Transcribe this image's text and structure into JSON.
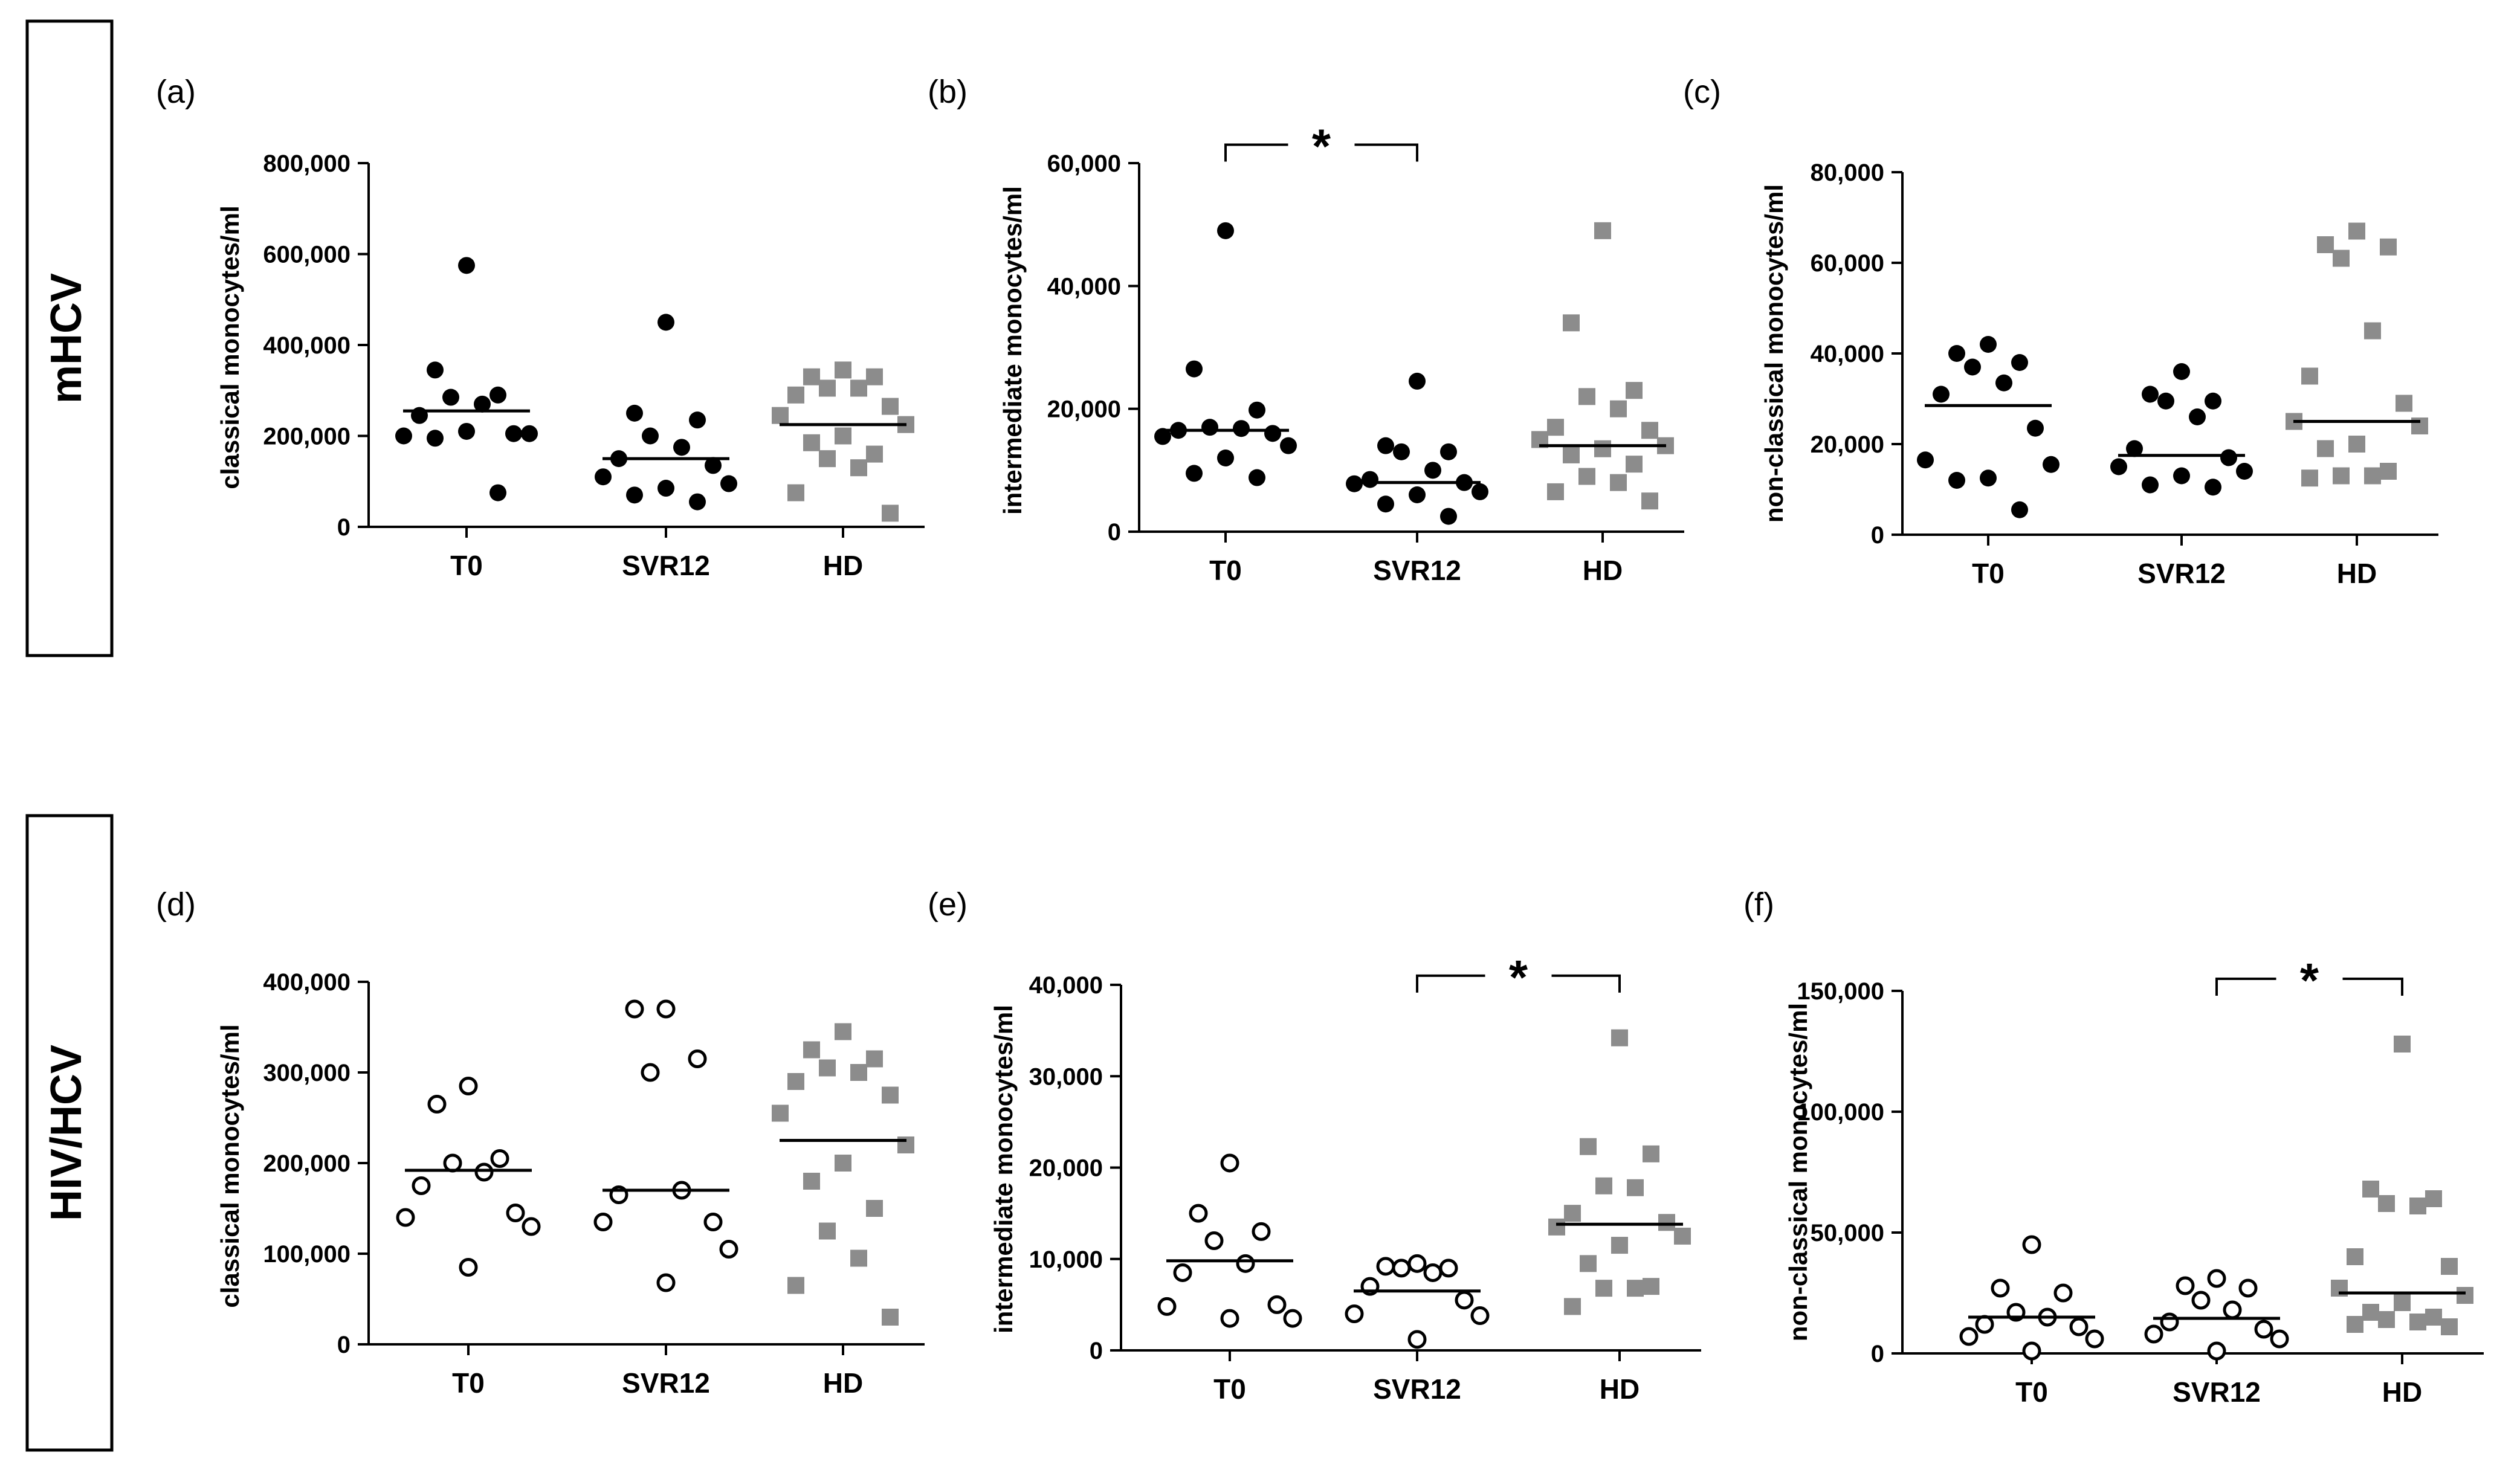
{
  "rows": [
    {
      "label": "mHCV"
    },
    {
      "label": "HIV/HCV"
    }
  ],
  "colors": {
    "patient_filled": "#000000",
    "patient_open_stroke": "#000000",
    "healthy_donor": "#8c8c8c",
    "axis": "#000000"
  },
  "chart_data": [
    {
      "panel": "(a)",
      "type": "scatter",
      "row": "mHCV",
      "ylabel": "classical monocytes/ml",
      "ylim": [
        0,
        800000
      ],
      "yticks": [
        0,
        200000,
        400000,
        600000,
        800000
      ],
      "ytick_labels": [
        "0",
        "200,000",
        "400,000",
        "600,000",
        "800,000"
      ],
      "categories": [
        "T0",
        "SVR12",
        "HD"
      ],
      "series": [
        {
          "name": "T0",
          "marker": "filled-circle",
          "median": 255000,
          "values": [
            575000,
            345000,
            290000,
            285000,
            270000,
            245000,
            205000,
            200000,
            205000,
            210000,
            195000,
            75000
          ]
        },
        {
          "name": "SVR12",
          "marker": "filled-circle",
          "median": 150000,
          "values": [
            450000,
            250000,
            235000,
            200000,
            175000,
            150000,
            135000,
            110000,
            95000,
            85000,
            70000,
            55000
          ]
        },
        {
          "name": "HD",
          "marker": "grey-square",
          "median": 225000,
          "values": [
            345000,
            330000,
            330000,
            305000,
            305000,
            290000,
            265000,
            245000,
            225000,
            200000,
            185000,
            160000,
            150000,
            130000,
            75000,
            30000
          ]
        }
      ],
      "significance": []
    },
    {
      "panel": "(b)",
      "type": "scatter",
      "row": "mHCV",
      "ylabel": "intermediate monocytes/ml",
      "ylim": [
        0,
        60000
      ],
      "yticks": [
        0,
        20000,
        40000,
        60000
      ],
      "ytick_labels": [
        "0",
        "20,000",
        "40,000",
        "60,000"
      ],
      "categories": [
        "T0",
        "SVR12",
        "HD"
      ],
      "series": [
        {
          "name": "T0",
          "marker": "filled-circle",
          "median": 16500,
          "values": [
            49000,
            26500,
            19800,
            17000,
            16800,
            16500,
            16000,
            15500,
            14000,
            12000,
            9500,
            8800
          ]
        },
        {
          "name": "SVR12",
          "marker": "filled-circle",
          "median": 8000,
          "values": [
            24500,
            14000,
            13000,
            13000,
            10000,
            8500,
            8000,
            7800,
            6500,
            6000,
            4500,
            2500
          ]
        },
        {
          "name": "HD",
          "marker": "grey-square",
          "median": 14000,
          "values": [
            49000,
            34000,
            23000,
            22000,
            20000,
            17000,
            16500,
            15000,
            14000,
            13500,
            12500,
            11000,
            9000,
            8000,
            6500,
            5000
          ]
        }
      ],
      "significance": [
        {
          "from": "T0",
          "to": "SVR12",
          "label": "*",
          "bracket_value": 63000
        }
      ]
    },
    {
      "panel": "(c)",
      "type": "scatter",
      "row": "mHCV",
      "ylabel": "non-classical monocytes/ml",
      "ylim": [
        0,
        80000
      ],
      "yticks": [
        0,
        20000,
        40000,
        60000,
        80000
      ],
      "ytick_labels": [
        "0",
        "20,000",
        "40,000",
        "60,000",
        "80,000"
      ],
      "categories": [
        "T0",
        "SVR12",
        "HD"
      ],
      "series": [
        {
          "name": "T0",
          "marker": "filled-circle",
          "median": 28500,
          "values": [
            42000,
            40000,
            38000,
            37000,
            33500,
            31000,
            23500,
            16500,
            15500,
            12500,
            12000,
            5500
          ]
        },
        {
          "name": "SVR12",
          "marker": "filled-circle",
          "median": 17500,
          "values": [
            36000,
            31000,
            29500,
            29500,
            26000,
            19000,
            17000,
            15000,
            14000,
            13000,
            11000,
            10500
          ]
        },
        {
          "name": "HD",
          "marker": "grey-square",
          "median": 25000,
          "values": [
            67000,
            64000,
            63500,
            61000,
            45000,
            35000,
            29000,
            25000,
            24000,
            20000,
            19000,
            14000,
            13000,
            13000,
            12500
          ]
        }
      ],
      "significance": []
    },
    {
      "panel": "(d)",
      "type": "scatter",
      "row": "HIV/HCV",
      "ylabel": "classical monocytes/ml",
      "ylim": [
        0,
        400000
      ],
      "yticks": [
        0,
        100000,
        200000,
        300000,
        400000
      ],
      "ytick_labels": [
        "0",
        "100,000",
        "200,000",
        "300,000",
        "400,000"
      ],
      "categories": [
        "T0",
        "SVR12",
        "HD"
      ],
      "series": [
        {
          "name": "T0",
          "marker": "open-circle",
          "median": 192000,
          "values": [
            285000,
            265000,
            205000,
            200000,
            190000,
            175000,
            145000,
            140000,
            130000,
            85000
          ]
        },
        {
          "name": "SVR12",
          "marker": "open-circle",
          "median": 170000,
          "values": [
            370000,
            370000,
            315000,
            300000,
            170000,
            165000,
            135000,
            135000,
            105000,
            68000
          ]
        },
        {
          "name": "HD",
          "marker": "grey-square",
          "median": 225000,
          "values": [
            345000,
            325000,
            315000,
            305000,
            300000,
            290000,
            275000,
            255000,
            220000,
            200000,
            180000,
            150000,
            125000,
            95000,
            65000,
            30000
          ]
        }
      ],
      "significance": []
    },
    {
      "panel": "(e)",
      "type": "scatter",
      "row": "HIV/HCV",
      "ylabel": "intermediate monocytes/ml",
      "ylim": [
        0,
        40000
      ],
      "yticks": [
        0,
        10000,
        20000,
        30000,
        40000
      ],
      "ytick_labels": [
        "0",
        "10,000",
        "20,000",
        "30,000",
        "40,000"
      ],
      "categories": [
        "T0",
        "SVR12",
        "HD"
      ],
      "series": [
        {
          "name": "T0",
          "marker": "open-circle",
          "median": 9800,
          "values": [
            20500,
            15000,
            13000,
            12000,
            9500,
            8500,
            5000,
            4800,
            3500,
            3500
          ]
        },
        {
          "name": "SVR12",
          "marker": "open-circle",
          "median": 6500,
          "values": [
            9500,
            9200,
            9000,
            9000,
            8500,
            7000,
            5500,
            4000,
            3800,
            1200
          ]
        },
        {
          "name": "HD",
          "marker": "grey-square",
          "median": 13800,
          "values": [
            34200,
            22300,
            21500,
            18000,
            17800,
            15000,
            14000,
            13500,
            12500,
            11500,
            9500,
            7000,
            6800,
            6800,
            4800
          ]
        }
      ],
      "significance": [
        {
          "from": "SVR12",
          "to": "HD",
          "label": "*",
          "bracket_value": 41000
        }
      ]
    },
    {
      "panel": "(f)",
      "type": "scatter",
      "row": "HIV/HCV",
      "ylabel": "non-classical monocytes/ml",
      "ylim": [
        0,
        150000
      ],
      "yticks": [
        0,
        50000,
        100000,
        150000
      ],
      "ytick_labels": [
        "0",
        "50,000",
        "100,000",
        "150,000"
      ],
      "categories": [
        "T0",
        "SVR12",
        "HD"
      ],
      "series": [
        {
          "name": "T0",
          "marker": "open-circle",
          "median": 15000,
          "values": [
            45000,
            27000,
            25000,
            17000,
            15000,
            12000,
            11000,
            7000,
            6000,
            1000
          ]
        },
        {
          "name": "SVR12",
          "marker": "open-circle",
          "median": 14500,
          "values": [
            31000,
            28000,
            27000,
            22000,
            18000,
            13000,
            10000,
            8000,
            6000,
            1000
          ]
        },
        {
          "name": "HD",
          "marker": "grey-square",
          "median": 25000,
          "values": [
            128000,
            68000,
            64000,
            62000,
            61000,
            40000,
            36000,
            27000,
            24000,
            21000,
            17000,
            15000,
            14000,
            13000,
            12000,
            11000
          ]
        }
      ],
      "significance": [
        {
          "from": "SVR12",
          "to": "HD",
          "label": "*",
          "bracket_value": 155000
        }
      ]
    }
  ]
}
